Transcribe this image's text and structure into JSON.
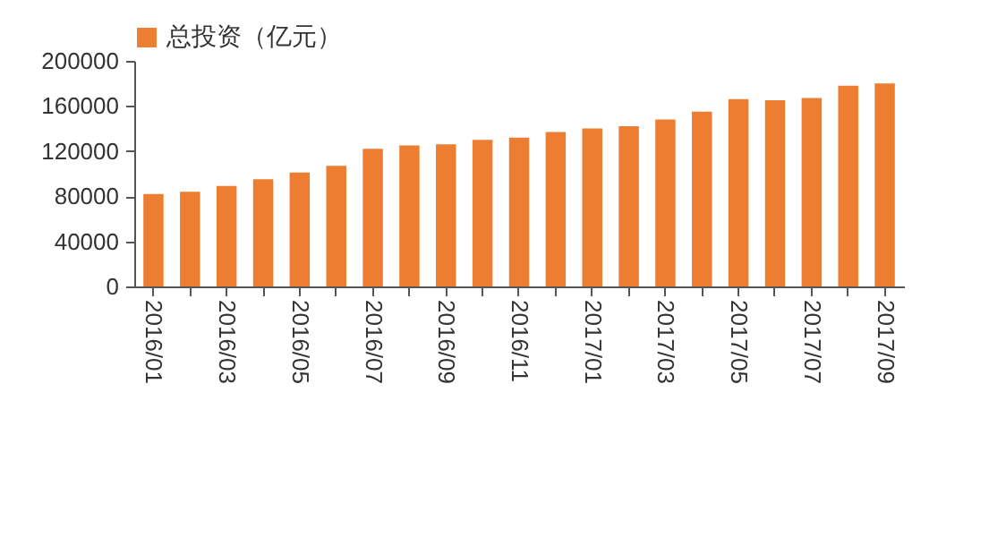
{
  "chart_data": {
    "type": "bar",
    "categories": [
      "2016/01",
      null,
      "2016/03",
      null,
      "2016/05",
      null,
      "2016/07",
      null,
      "2016/09",
      null,
      "2016/11",
      null,
      "2017/01",
      null,
      "2017/03",
      null,
      "2017/05",
      null,
      "2017/07",
      null,
      "2017/09"
    ],
    "series": [
      {
        "name": "总投资（亿元）",
        "color": "#ed7d31",
        "values": [
          82000,
          84000,
          89000,
          95000,
          101000,
          107000,
          122000,
          125000,
          126000,
          130000,
          132000,
          137000,
          140000,
          142000,
          148000,
          155000,
          166000,
          165000,
          167000,
          178000,
          180000
        ]
      }
    ],
    "ylim": [
      0,
      200000
    ],
    "yticks": [
      0,
      40000,
      80000,
      120000,
      160000,
      200000
    ],
    "grid": false,
    "legend": "top"
  }
}
